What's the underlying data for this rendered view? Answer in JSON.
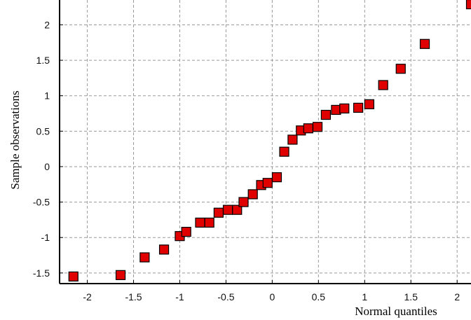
{
  "chart_data": {
    "type": "scatter",
    "title": "",
    "xlabel": "Normal quantiles",
    "ylabel": "Sample observations",
    "xlim": [
      -2.3,
      2.15
    ],
    "ylim": [
      -1.65,
      2.35
    ],
    "xticks": [
      -2,
      -1.5,
      -1,
      -0.5,
      0,
      0.5,
      1,
      1.5,
      2
    ],
    "xtick_labels": [
      "-2",
      "-1.5",
      "-1",
      "-0.5",
      "0",
      "0.5",
      "1",
      "1.5",
      "2"
    ],
    "yticks": [
      -1.5,
      -1,
      -0.5,
      0,
      0.5,
      1,
      1.5,
      2
    ],
    "ytick_labels": [
      "-1.5",
      "-1",
      "-0.5",
      "0",
      "0.5",
      "1",
      "1.5",
      "2"
    ],
    "grid": true,
    "marker": "square",
    "marker_color": "#e00000",
    "marker_edge_color": "#000000",
    "points": [
      {
        "x": -2.15,
        "y": -1.55
      },
      {
        "x": -1.64,
        "y": -1.53
      },
      {
        "x": -1.38,
        "y": -1.28
      },
      {
        "x": -1.17,
        "y": -1.17
      },
      {
        "x": -1.0,
        "y": -0.98
      },
      {
        "x": -0.93,
        "y": -0.92
      },
      {
        "x": -0.78,
        "y": -0.79
      },
      {
        "x": -0.68,
        "y": -0.79
      },
      {
        "x": -0.58,
        "y": -0.65
      },
      {
        "x": -0.48,
        "y": -0.61
      },
      {
        "x": -0.38,
        "y": -0.61
      },
      {
        "x": -0.31,
        "y": -0.5
      },
      {
        "x": -0.21,
        "y": -0.39
      },
      {
        "x": -0.12,
        "y": -0.26
      },
      {
        "x": -0.05,
        "y": -0.23
      },
      {
        "x": 0.05,
        "y": -0.15
      },
      {
        "x": 0.13,
        "y": 0.21
      },
      {
        "x": 0.22,
        "y": 0.38
      },
      {
        "x": 0.31,
        "y": 0.51
      },
      {
        "x": 0.39,
        "y": 0.54
      },
      {
        "x": 0.49,
        "y": 0.56
      },
      {
        "x": 0.58,
        "y": 0.73
      },
      {
        "x": 0.69,
        "y": 0.8
      },
      {
        "x": 0.78,
        "y": 0.82
      },
      {
        "x": 0.93,
        "y": 0.83
      },
      {
        "x": 1.05,
        "y": 0.88
      },
      {
        "x": 1.2,
        "y": 1.15
      },
      {
        "x": 1.39,
        "y": 1.38
      },
      {
        "x": 1.65,
        "y": 1.73
      },
      {
        "x": 2.15,
        "y": 2.29
      }
    ]
  }
}
